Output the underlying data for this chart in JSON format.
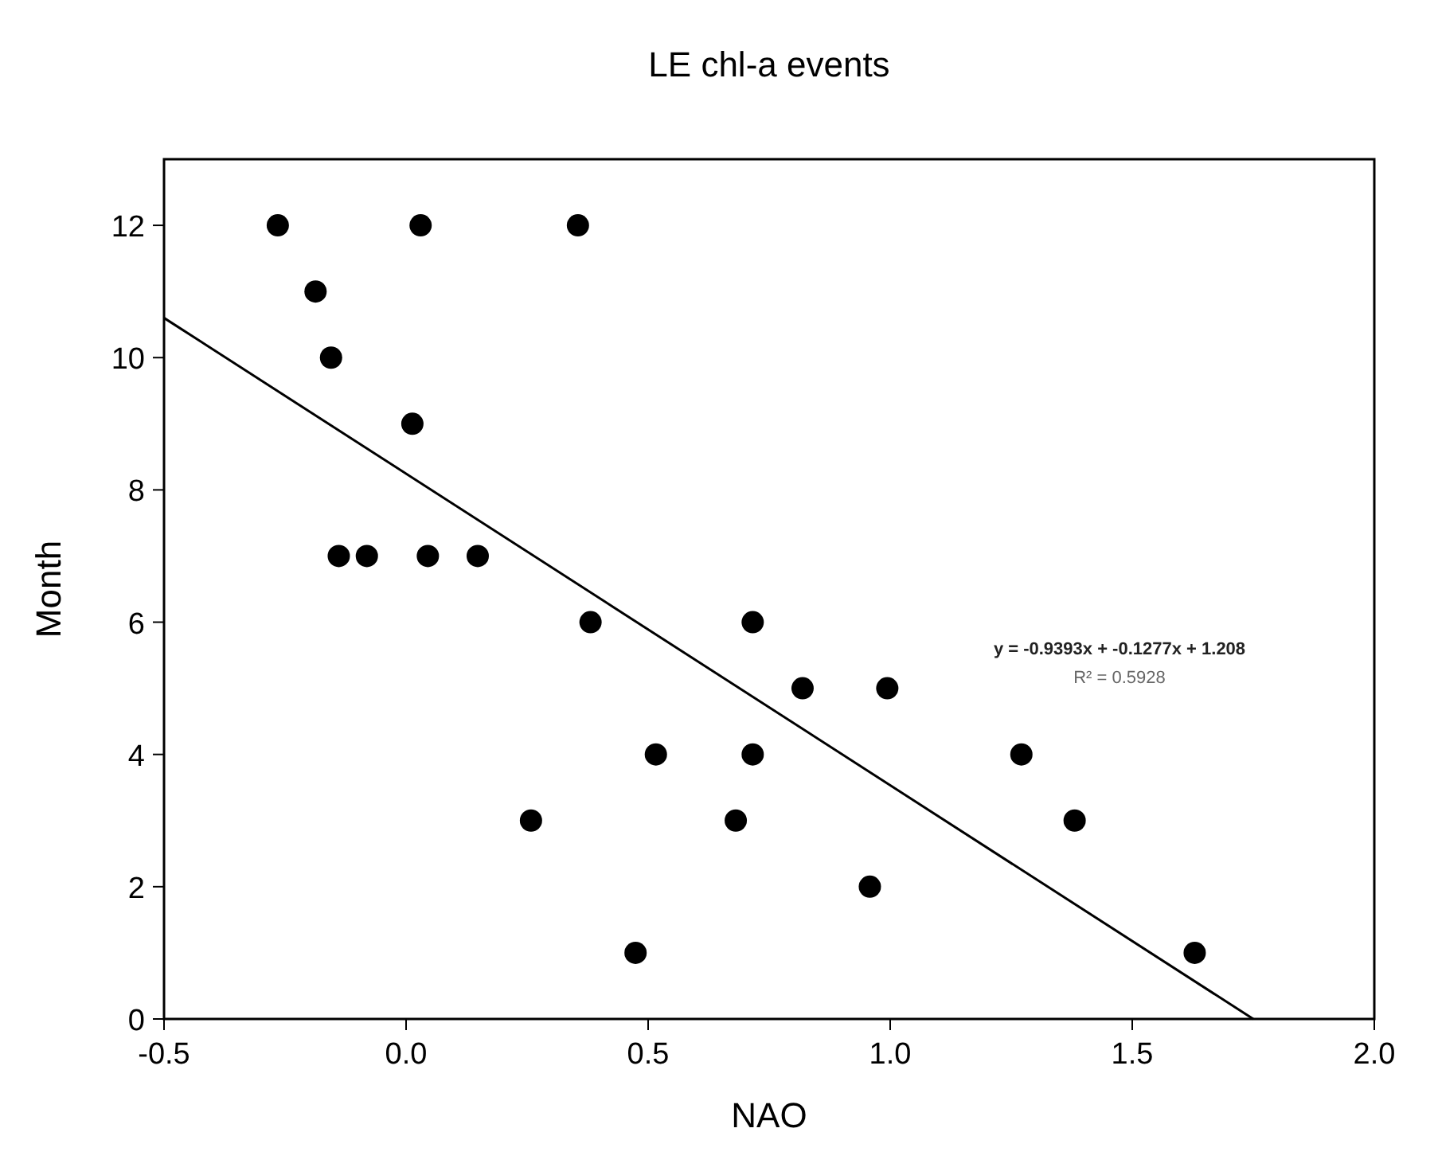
{
  "chart_data": {
    "type": "scatter",
    "title": "LE chl-a events",
    "xlabel": "NAO",
    "ylabel": "Month",
    "xlim": [
      -0.5,
      2.0
    ],
    "xticks": [
      {
        "value": -0.5,
        "label": "-0.5"
      },
      {
        "value": 0,
        "label": "0.0"
      },
      {
        "value": 0.5,
        "label": "0.5"
      },
      {
        "value": 1,
        "label": "1.0"
      },
      {
        "value": 1.5,
        "label": "1.5"
      },
      {
        "value": 2,
        "label": "2.0"
      }
    ],
    "ylim": [
      0,
      13
    ],
    "yticks": [
      0,
      2,
      4,
      6,
      8,
      10,
      12
    ],
    "grid": false,
    "series": [
      {
        "color": "#000000",
        "marker": "circle",
        "x": [
          -0.265,
          0.03,
          0.355,
          -0.187,
          -0.155,
          0.013,
          -0.139,
          -0.081,
          0.045,
          0.148,
          0.381,
          0.716,
          0.819,
          0.994,
          0.516,
          0.716,
          1.271,
          0.258,
          0.681,
          1.381,
          0.958,
          0.474,
          1.629
        ],
        "values": [
          12,
          12,
          12,
          11,
          10,
          9,
          7,
          7,
          7,
          7,
          6,
          6,
          5,
          5,
          4,
          4,
          4,
          3,
          3,
          3,
          2,
          1,
          1
        ]
      },
      {
        "type": "line",
        "color": "#000000",
        "marker": "none",
        "line_style": "solid",
        "x": [
          -0.5,
          1.75
        ],
        "values": [
          10.6,
          0
        ]
      }
    ],
    "annotations": [
      "y = -0.9393x + -0.1277x + 1.208",
      "R² = 0.5928"
    ]
  }
}
